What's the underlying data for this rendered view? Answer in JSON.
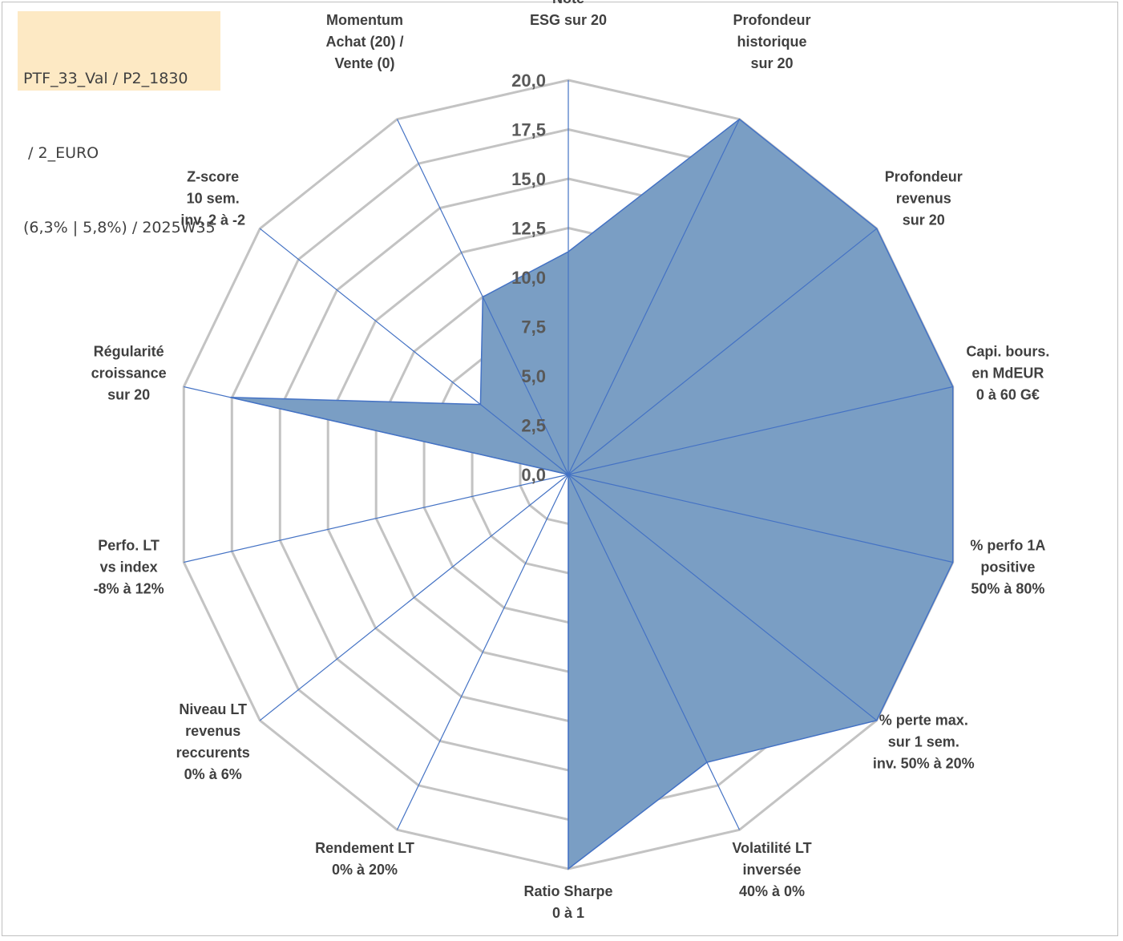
{
  "header": {
    "info_lines": [
      "PTF_33_Val / P2_1830",
      " / 2_EURO",
      "(6,3% | 5,8%) / 2025W35"
    ]
  },
  "colors": {
    "area_fill": "#7a9ec4",
    "area_stroke": "#4472c4",
    "grid": "#c3c3c3",
    "info_box_bg": "#fde9c4"
  },
  "chart_data": {
    "type": "radar",
    "range": [
      0,
      20
    ],
    "tick_step": 2.5,
    "tick_labels": [
      "0,0",
      "2,5",
      "5,0",
      "7,5",
      "10,0",
      "12,5",
      "15,0",
      "17,5",
      "20,0"
    ],
    "axes": [
      {
        "label": [
          "Note",
          "ESG sur 20"
        ]
      },
      {
        "label": [
          "Profondeur",
          "historique",
          "sur 20"
        ]
      },
      {
        "label": [
          "Profondeur",
          "revenus",
          "sur 20"
        ]
      },
      {
        "label": [
          "Capi. bours.",
          "en MdEUR",
          "0 à 60 G€"
        ]
      },
      {
        "label": [
          "% perfo 1A",
          "positive",
          "50% à 80%"
        ]
      },
      {
        "label": [
          "% perte max.",
          "sur 1 sem.",
          "inv. 50% à 20%"
        ]
      },
      {
        "label": [
          "Volatilité LT",
          "inversée",
          "40% à 0%"
        ]
      },
      {
        "label": [
          "Ratio Sharpe",
          "0 à 1"
        ]
      },
      {
        "label": [
          "Rendement LT",
          "0% à 20%"
        ]
      },
      {
        "label": [
          "Niveau LT",
          "revenus",
          "reccurents",
          "0% à 6%"
        ]
      },
      {
        "label": [
          "Perfo. LT",
          "vs index",
          "-8% à 12%"
        ]
      },
      {
        "label": [
          "Régularité",
          "croissance",
          "sur 20"
        ]
      },
      {
        "label": [
          "Z-score",
          "10 sem.",
          "inv. 2 à -2"
        ]
      },
      {
        "label": [
          "Momentum",
          "Achat (20) /",
          "Vente (0)"
        ]
      }
    ],
    "series": [
      {
        "values": [
          11.3,
          20.0,
          20.0,
          20.0,
          20.0,
          20.0,
          16.2,
          20.0,
          0.0,
          0.0,
          0.0,
          17.6,
          5.7,
          10.0
        ]
      }
    ],
    "grid": true,
    "legend": "none"
  }
}
